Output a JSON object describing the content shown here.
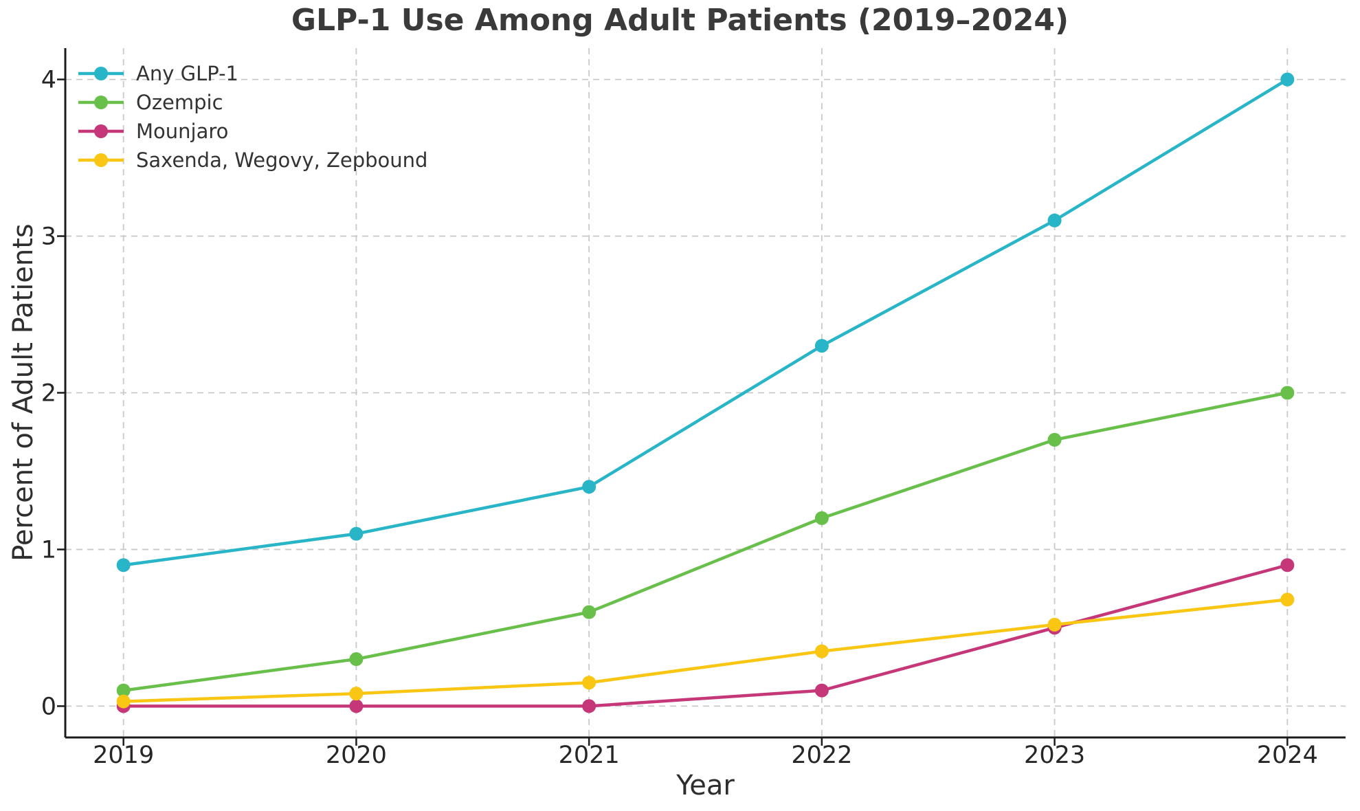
{
  "chart_data": {
    "type": "line",
    "title": "GLP-1 Use Among Adult Patients (2019–2024)",
    "xlabel": "Year",
    "ylabel": "Percent of Adult Patients",
    "x": [
      2019,
      2020,
      2021,
      2022,
      2023,
      2024
    ],
    "x_tick_labels": [
      "2019",
      "2020",
      "2021",
      "2022",
      "2023",
      "2024"
    ],
    "y_ticks": [
      0,
      1,
      2,
      3,
      4
    ],
    "y_tick_labels": [
      "0",
      "1",
      "2",
      "3",
      "4"
    ],
    "xlim": [
      2018.75,
      2024.25
    ],
    "ylim": [
      -0.2,
      4.2
    ],
    "grid": true,
    "grid_style": "dashed",
    "legend_position": "upper-left",
    "legend_frame": false,
    "series": [
      {
        "name": "Any GLP-1",
        "color": "#29b5c8",
        "values": [
          0.9,
          1.1,
          1.4,
          2.3,
          3.1,
          4.0
        ]
      },
      {
        "name": "Ozempic",
        "color": "#68bf4a",
        "values": [
          0.1,
          0.3,
          0.6,
          1.2,
          1.7,
          2.0
        ]
      },
      {
        "name": "Mounjaro",
        "color": "#c53778",
        "values": [
          0.0,
          0.0,
          0.0,
          0.1,
          0.5,
          0.9
        ]
      },
      {
        "name": "Saxenda, Wegovy, Zepbound",
        "color": "#f9c613",
        "values": [
          0.03,
          0.08,
          0.15,
          0.35,
          0.52,
          0.68
        ]
      }
    ]
  },
  "style_colors": {
    "background": "#ffffff",
    "grid": "#c9c9c9",
    "spine": "#1c1c1c",
    "tick_label": "#262626",
    "title": "#3a3a3a",
    "axis_label": "#2e2e2e",
    "legend_text": "#333333"
  }
}
